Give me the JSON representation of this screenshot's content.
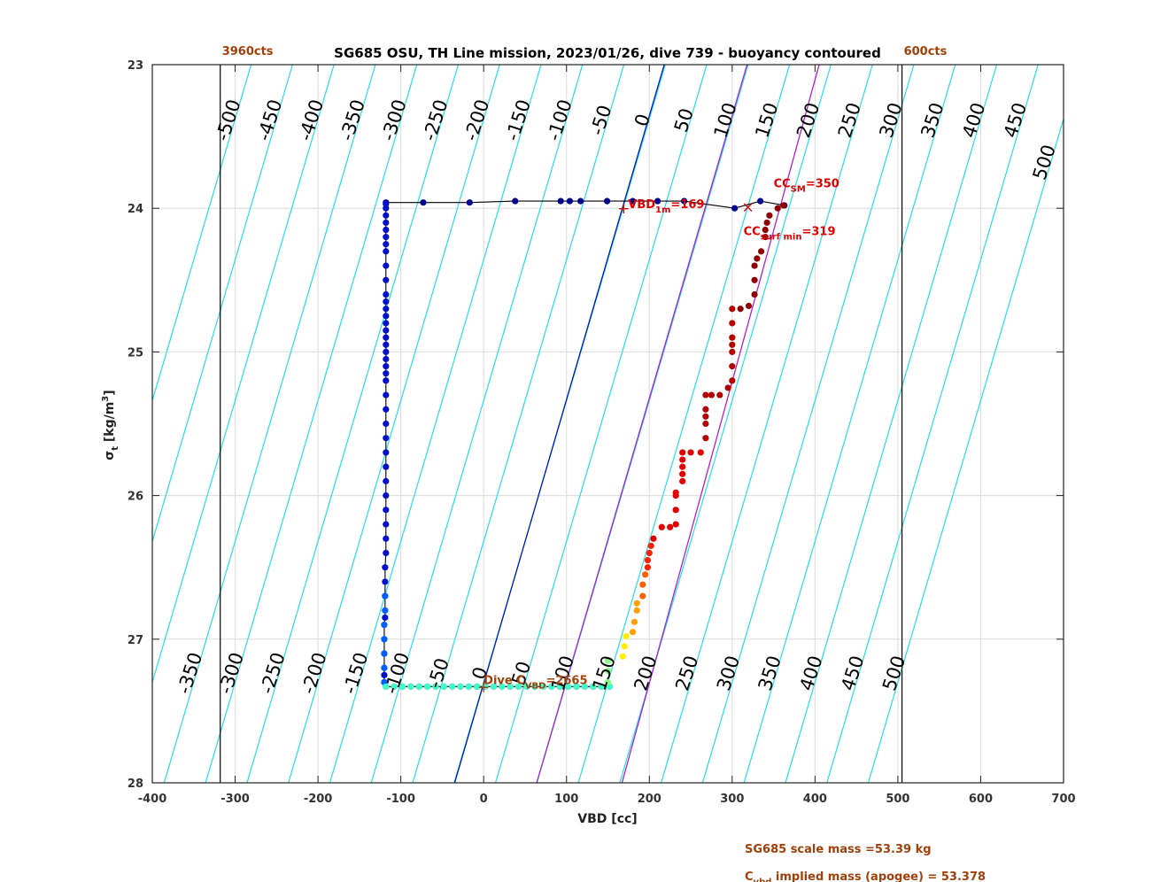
{
  "chart_data": {
    "type": "scatter",
    "title": "SG685 OSU, TH Line mission, 2023/01/26, dive 739 - buoyancy contoured",
    "x_label": "VBD [cc]",
    "y_label": {
      "text": "σ",
      "sub": "t",
      "tail": " [kg/m",
      "sup": "3",
      "end": "]"
    },
    "xlim": [
      -400,
      700
    ],
    "xticks": [
      -400,
      -300,
      -200,
      -100,
      0,
      100,
      200,
      300,
      400,
      500,
      600,
      700
    ],
    "ylim": [
      23,
      28
    ],
    "yticks": [
      23,
      24,
      25,
      26,
      27,
      28
    ],
    "y_inverted": true,
    "grid": true,
    "contour_color": "#22e0e8",
    "contours": [
      -500,
      -450,
      -400,
      -350,
      -300,
      -250,
      -200,
      -150,
      -100,
      -50,
      0,
      50,
      100,
      150,
      200,
      250,
      300,
      350,
      400,
      450,
      500
    ],
    "reference_lines": [
      {
        "color": "#0018c0",
        "x": [
          -35,
          218
        ],
        "y": [
          28,
          23
        ]
      },
      {
        "color": "#b020d0",
        "x": [
          64,
          318
        ],
        "y": [
          28,
          23
        ]
      },
      {
        "color": "#b020d0",
        "x": [
          167,
          405
        ],
        "y": [
          28,
          23
        ]
      }
    ],
    "count_lines": [
      {
        "value": -318,
        "label": "3960cts"
      },
      {
        "value": 505,
        "label": "600cts"
      }
    ],
    "series": [
      {
        "color": "#00008f",
        "line": true,
        "x": [
          -118,
          -73,
          -17,
          38,
          93,
          104,
          117,
          149,
          180,
          210,
          242,
          303,
          334,
          363
        ],
        "y": [
          23.96,
          23.96,
          23.96,
          23.95,
          23.95,
          23.95,
          23.95,
          23.95,
          23.95,
          23.95,
          23.95,
          24.0,
          23.95,
          23.98
        ]
      },
      {
        "color": "#0010c8",
        "line": true,
        "x": [
          -118,
          -118,
          -118,
          -118,
          -118,
          -118,
          -118,
          -118,
          -118,
          -118,
          -118,
          -118,
          -118,
          -118,
          -118,
          -118,
          -118,
          -118,
          -118,
          -118,
          -118,
          -118,
          -118,
          -118,
          -118,
          -118,
          -118,
          -118,
          -118,
          -118,
          -118,
          -118,
          -118,
          -118,
          -118,
          -119,
          -119,
          -119,
          -119,
          -119,
          -120,
          -120,
          -120,
          -120,
          -120,
          -120,
          -118,
          -108,
          -98,
          -88,
          -78,
          -68,
          -58,
          -48,
          -38,
          -28,
          -18,
          -8,
          2,
          12,
          22,
          32,
          42,
          52,
          62,
          72,
          82,
          92,
          102,
          112,
          122,
          132,
          142,
          152
        ],
        "y": [
          23.97,
          24.0,
          24.05,
          24.1,
          24.15,
          24.2,
          24.25,
          24.3,
          24.4,
          24.5,
          24.6,
          24.65,
          24.7,
          24.75,
          24.8,
          24.85,
          24.9,
          24.95,
          25.0,
          25.05,
          25.1,
          25.15,
          25.2,
          25.3,
          25.4,
          25.5,
          25.6,
          25.7,
          25.8,
          25.9,
          26.0,
          26.1,
          26.2,
          26.3,
          26.4,
          26.5,
          26.6,
          26.7,
          26.8,
          26.85,
          26.9,
          27.0,
          27.1,
          27.2,
          27.25,
          27.3,
          27.33,
          27.33,
          27.33,
          27.33,
          27.33,
          27.33,
          27.33,
          27.33,
          27.33,
          27.33,
          27.33,
          27.33,
          27.33,
          27.33,
          27.33,
          27.33,
          27.33,
          27.33,
          27.33,
          27.33,
          27.33,
          27.33,
          27.33,
          27.33,
          27.33,
          27.33,
          27.33,
          27.33
        ],
        "colors_by_range": false
      },
      {
        "color": "#0060ff",
        "x": [
          -119,
          -119,
          -120,
          -120,
          -120,
          -120,
          -120
        ],
        "y": [
          26.7,
          26.8,
          26.9,
          27.0,
          27.1,
          27.2,
          27.3
        ]
      },
      {
        "color": "#40ffc8",
        "x": [
          -118,
          -108,
          -98,
          -88,
          -78,
          -68,
          -58,
          -48,
          -38,
          -28,
          -18,
          -8,
          2,
          12,
          22,
          32,
          42,
          52,
          62,
          72,
          82,
          92,
          102,
          112,
          122,
          132,
          142,
          152
        ],
        "y": [
          27.33,
          27.33,
          27.33,
          27.33,
          27.33,
          27.33,
          27.33,
          27.33,
          27.33,
          27.33,
          27.33,
          27.33,
          27.33,
          27.33,
          27.33,
          27.33,
          27.33,
          27.33,
          27.33,
          27.33,
          27.33,
          27.33,
          27.33,
          27.33,
          27.33,
          27.33,
          27.33,
          27.33
        ]
      },
      {
        "color": "#80ff80",
        "x": [
          150,
          150,
          150
        ],
        "y": [
          27.3,
          27.22,
          27.15
        ]
      },
      {
        "color": "#ffee00",
        "x": [
          168,
          170,
          172
        ],
        "y": [
          27.12,
          27.05,
          26.98
        ]
      },
      {
        "color": "#ffa000",
        "x": [
          180,
          182,
          185,
          185
        ],
        "y": [
          26.95,
          26.88,
          26.8,
          26.75
        ]
      },
      {
        "color": "#ff6000",
        "x": [
          192,
          192,
          195
        ],
        "y": [
          26.7,
          26.62,
          26.55
        ]
      },
      {
        "color": "#ff2000",
        "x": [
          198,
          198,
          200,
          202
        ],
        "y": [
          26.5,
          26.45,
          26.4,
          26.35
        ]
      },
      {
        "color": "#e00000",
        "x": [
          205,
          215,
          225,
          232,
          232,
          232,
          232,
          240,
          240,
          240,
          240,
          240,
          250,
          262
        ],
        "y": [
          26.3,
          26.22,
          26.22,
          26.2,
          26.1,
          26.0,
          25.98,
          25.9,
          25.85,
          25.8,
          25.75,
          25.7,
          25.7,
          25.7
        ]
      },
      {
        "color": "#b40000",
        "x": [
          268,
          268,
          268,
          268,
          268,
          275,
          285,
          295,
          300,
          300,
          300,
          300,
          300,
          300,
          300
        ],
        "y": [
          25.6,
          25.5,
          25.45,
          25.4,
          25.3,
          25.3,
          25.3,
          25.25,
          25.2,
          25.1,
          25.0,
          24.95,
          24.9,
          24.8,
          24.7
        ]
      },
      {
        "color": "#900000",
        "x": [
          310,
          320,
          327,
          327,
          327,
          330,
          335,
          340,
          340,
          342,
          345,
          355,
          362
        ],
        "y": [
          24.7,
          24.68,
          24.6,
          24.5,
          24.4,
          24.35,
          24.3,
          24.2,
          24.15,
          24.1,
          24.05,
          24.0,
          23.98
        ]
      }
    ],
    "annotations": [
      {
        "text": "VBD",
        "sub": "1m",
        "value": 169,
        "value_label": "=169",
        "color": "#e00000"
      },
      {
        "text": "CC",
        "sub": "SM",
        "value": 350,
        "value_label": "=350",
        "color": "#e00000"
      },
      {
        "text": "CC",
        "sub": "surf min",
        "value": 319,
        "value_label": "=319",
        "color": "#e00000"
      },
      {
        "text": "Dive C",
        "sub": "VBD",
        "value": 2665,
        "value_label": "=2665",
        "color": "#a0400a"
      }
    ],
    "notes": [
      {
        "text": "SG685 scale mass =53.39 kg"
      },
      {
        "text": "C",
        "sub": "vbd",
        "tail": " implied mass (apogee) = 53.378"
      }
    ],
    "note_color": "#a0400a"
  }
}
